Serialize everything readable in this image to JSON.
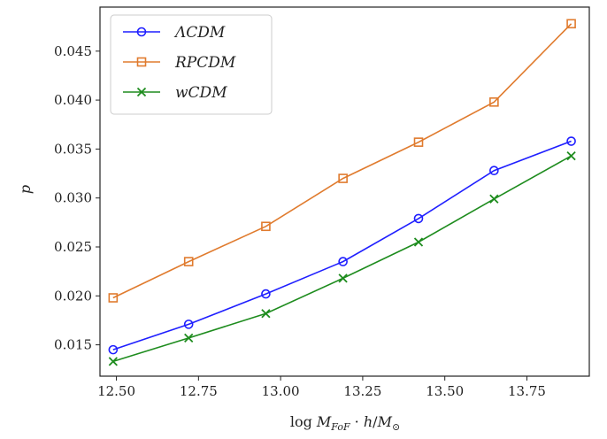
{
  "chart_data": {
    "type": "line",
    "xlabel": "log M_{FoF} · h/M_⊙",
    "ylabel": "p",
    "xlim": [
      12.45,
      13.94
    ],
    "ylim": [
      0.0118,
      0.0495
    ],
    "x_ticks": [
      "12.50",
      "12.75",
      "13.00",
      "13.25",
      "13.50",
      "13.75"
    ],
    "y_ticks": [
      "0.015",
      "0.020",
      "0.025",
      "0.030",
      "0.035",
      "0.040",
      "0.045"
    ],
    "legend_position": "top-left",
    "grid": false,
    "series": [
      {
        "name": "ΛCDM",
        "color": "#1f1fff",
        "marker": "circle",
        "x": [
          12.49,
          12.72,
          12.955,
          13.19,
          13.42,
          13.65,
          13.885
        ],
        "y": [
          0.0145,
          0.0171,
          0.0202,
          0.0235,
          0.0279,
          0.0328,
          0.0358
        ]
      },
      {
        "name": "RPCDM",
        "color": "#e07b2e",
        "marker": "square",
        "x": [
          12.49,
          12.72,
          12.955,
          13.19,
          13.42,
          13.65,
          13.885
        ],
        "y": [
          0.0198,
          0.0235,
          0.0271,
          0.032,
          0.0357,
          0.0398,
          0.0478
        ]
      },
      {
        "name": "wCDM",
        "color": "#1e8c1e",
        "marker": "x",
        "x": [
          12.49,
          12.72,
          12.955,
          13.19,
          13.42,
          13.65,
          13.885
        ],
        "y": [
          0.0133,
          0.0157,
          0.0182,
          0.0218,
          0.0255,
          0.0299,
          0.0343
        ]
      }
    ]
  }
}
